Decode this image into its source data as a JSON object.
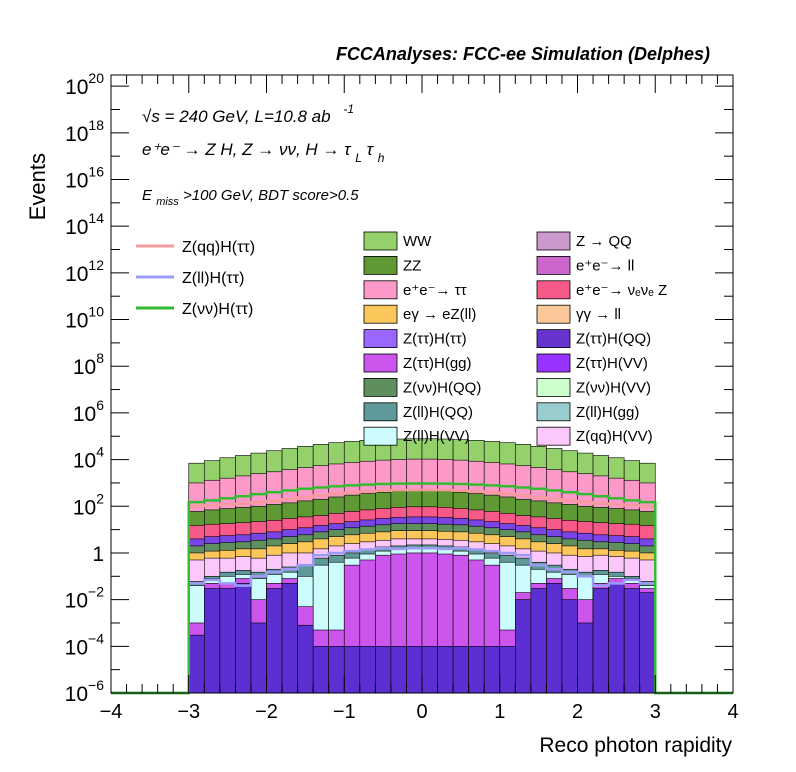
{
  "header": {
    "title": "FCCAnalyses: FCC-ee Simulation (Delphes)"
  },
  "annotations": {
    "line1": "√s = 240 GeV, L=10.8 ab",
    "line1_sup": "-1",
    "line2": "e⁺e⁻ → Z H, Z → νν, H → τ",
    "line2_sub1": "L",
    "line2_tau": "τ",
    "line2_sub2": "h",
    "line3_prefix": "E",
    "line3_sub": "miss",
    "line3_rest": ">100 GeV, BDT score>0.5"
  },
  "chart_data": {
    "type": "area",
    "title": "FCCAnalyses: FCC-ee Simulation (Delphes)",
    "xlabel": "Reco photon rapidity",
    "ylabel": "Events",
    "xlim": [
      -4,
      4
    ],
    "ylim": [
      1e-06,
      3e+20
    ],
    "yscale": "log",
    "grid": false,
    "legend_position": "top",
    "x_ticks": [
      "−4",
      "−3",
      "−2",
      "−1",
      "0",
      "1",
      "2",
      "3",
      "4"
    ],
    "y_ticks": [
      {
        "base": "10",
        "exp": "−6",
        "value": 1e-06
      },
      {
        "base": "10",
        "exp": "−4",
        "value": 0.0001
      },
      {
        "base": "10",
        "exp": "−2",
        "value": 0.01
      },
      {
        "base": "1",
        "exp": "",
        "value": 1
      },
      {
        "base": "10",
        "exp": "2",
        "value": 100.0
      },
      {
        "base": "10",
        "exp": "4",
        "value": 10000.0
      },
      {
        "base": "10",
        "exp": "6",
        "value": 1000000.0
      },
      {
        "base": "10",
        "exp": "8",
        "value": 100000000.0
      },
      {
        "base": "10",
        "exp": "10",
        "value": 10000000000.0
      },
      {
        "base": "10",
        "exp": "12",
        "value": 1000000000000.0
      },
      {
        "base": "10",
        "exp": "14",
        "value": 100000000000000.0
      },
      {
        "base": "10",
        "exp": "16",
        "value": 1e+16
      },
      {
        "base": "10",
        "exp": "18",
        "value": 1e+18
      },
      {
        "base": "10",
        "exp": "20",
        "value": 1e+20
      }
    ],
    "bin_range": [
      -3,
      3
    ],
    "n_bins": 30,
    "stack_top_cumulative": [
      [
        0.0003,
        0.03,
        0.03,
        0.05,
        0.001,
        0.03,
        0.05,
        0.0008,
        0.0001,
        0.0001,
        0.0001,
        0.0001,
        0.0001,
        0.0001,
        0.0001,
        0.0001,
        0.0001,
        0.0001,
        0.0001,
        0.0001,
        0.0001,
        0.01,
        0.03,
        0.05,
        0.01,
        0.001,
        0.03,
        0.05,
        0.03,
        0.02
      ],
      [
        0.001,
        0.05,
        0.05,
        0.08,
        0.01,
        0.05,
        0.08,
        0.005,
        0.0005,
        0.0005,
        0.3,
        0.5,
        0.8,
        0.9,
        1.0,
        1.0,
        0.9,
        0.8,
        0.5,
        0.3,
        0.0005,
        0.02,
        0.05,
        0.08,
        0.03,
        0.01,
        0.05,
        0.08,
        0.05,
        0.03
      ],
      [
        0.04,
        0.08,
        0.1,
        0.12,
        0.08,
        0.12,
        0.15,
        0.1,
        0.3,
        0.4,
        0.6,
        0.9,
        1.2,
        1.4,
        1.5,
        1.5,
        1.4,
        1.2,
        0.9,
        0.6,
        0.4,
        0.3,
        0.2,
        0.15,
        0.12,
        0.1,
        0.12,
        0.1,
        0.08,
        0.04
      ],
      [
        0.06,
        0.1,
        0.15,
        0.18,
        0.15,
        0.2,
        0.25,
        0.3,
        0.6,
        0.8,
        1.0,
        1.5,
        1.8,
        2.0,
        2.2,
        2.2,
        2.0,
        1.8,
        1.5,
        1.0,
        0.8,
        0.6,
        0.4,
        0.3,
        0.2,
        0.15,
        0.18,
        0.15,
        0.1,
        0.06
      ],
      [
        0.5,
        0.6,
        0.6,
        0.7,
        0.6,
        0.8,
        1.0,
        1.0,
        1.5,
        2.0,
        2.5,
        3.0,
        3.5,
        4.0,
        4.0,
        4.0,
        3.8,
        3.5,
        3.0,
        2.5,
        2.0,
        1.5,
        1.2,
        1.0,
        0.8,
        0.7,
        0.8,
        0.7,
        0.6,
        0.5
      ],
      [
        1.0,
        1.2,
        1.3,
        1.5,
        1.5,
        2.0,
        2.5,
        3.0,
        4.0,
        5.0,
        6.0,
        7.0,
        8.0,
        9.0,
        9.0,
        9.0,
        8.5,
        8.0,
        7.0,
        6.0,
        5.0,
        4.0,
        3.0,
        2.5,
        2.0,
        1.5,
        1.5,
        1.3,
        1.2,
        1.0
      ],
      [
        2.0,
        2.5,
        2.8,
        3.0,
        3.5,
        4.0,
        5.0,
        6.0,
        8.0,
        10.0,
        12.0,
        14.0,
        16.0,
        18.0,
        18.0,
        18.0,
        17.0,
        16.0,
        14.0,
        12.0,
        10.0,
        8.0,
        6.0,
        5.0,
        4.0,
        3.5,
        3.0,
        2.8,
        2.5,
        2.0
      ],
      [
        4.0,
        5.0,
        5.5,
        6.0,
        7.0,
        8.0,
        10.0,
        12.0,
        15.0,
        18.0,
        22.0,
        26.0,
        30.0,
        33.0,
        35.0,
        35.0,
        33.0,
        30.0,
        26.0,
        22.0,
        18.0,
        15.0,
        12.0,
        10.0,
        8.0,
        7.0,
        6.0,
        5.5,
        5.0,
        4.0
      ],
      [
        15.0,
        17.0,
        18.0,
        20.0,
        22.0,
        25.0,
        30.0,
        35.0,
        40.0,
        50.0,
        60.0,
        70.0,
        80.0,
        90.0,
        95.0,
        95.0,
        90.0,
        80.0,
        70.0,
        60.0,
        50.0,
        40.0,
        35.0,
        30.0,
        25.0,
        22.0,
        20.0,
        18.0,
        17.0,
        15.0
      ],
      [
        60.0,
        70.0,
        80.0,
        90.0,
        100.0,
        120.0,
        140.0,
        170.0,
        200.0,
        250.0,
        300.0,
        350.0,
        400.0,
        450.0,
        480.0,
        480.0,
        450.0,
        400.0,
        350.0,
        300.0,
        250.0,
        200.0,
        170.0,
        140.0,
        120.0,
        100.0,
        90.0,
        80.0,
        70.0,
        60.0
      ],
      [
        1000.0,
        1300.0,
        1600.0,
        2000.0,
        2500.0,
        3000.0,
        3700.0,
        4500.0,
        5500.0,
        6500.0,
        7500.0,
        8500.0,
        9500.0,
        10000.0,
        10500.0,
        10500.0,
        10000.0,
        9500.0,
        8500.0,
        7500.0,
        6500.0,
        5500.0,
        4500.0,
        3700.0,
        3000.0,
        2500.0,
        2000.0,
        1600.0,
        1300.0,
        1000.0
      ],
      [
        7000.0,
        9000.0,
        12000.0,
        15000.0,
        19000.0,
        24000.0,
        30000.0,
        37000.0,
        45000.0,
        53000.0,
        60000.0,
        67000.0,
        72000.0,
        76000.0,
        78000.0,
        78000.0,
        76000.0,
        72000.0,
        67000.0,
        60000.0,
        53000.0,
        45000.0,
        37000.0,
        30000.0,
        24000.0,
        19000.0,
        15000.0,
        12000.0,
        9000.0,
        7000.0
      ]
    ],
    "stack_layers": [
      {
        "name": "Z(ττ)H(VV)",
        "color": "#5b2fd1"
      },
      {
        "name": "Z(ττ)H(gg)",
        "color": "#cc55ee"
      },
      {
        "name": "Z(ll)H(VV)",
        "color": "#ccfcfc"
      },
      {
        "name": "Z(ll)H(QQ)",
        "color": "#5f9999"
      },
      {
        "name": "Z(qq)H(VV)",
        "color": "#fcc8fc"
      },
      {
        "name": "eγ → eZ(ll)",
        "color": "#fcc75a"
      },
      {
        "name": "Z(νν)H(QQ)",
        "color": "#5f8f5f"
      },
      {
        "name": "Z(ττ)H(QQ)",
        "color": "#7a45e6"
      },
      {
        "name": "e⁺e⁻→ νₑνₑ Z",
        "color": "#f75a88"
      },
      {
        "name": "ZZ",
        "color": "#5f9933"
      },
      {
        "name": "e⁺e⁻→ ττ",
        "color": "#fc99c8"
      },
      {
        "name": "WW",
        "color": "#94d16b"
      }
    ],
    "signal_lines": [
      {
        "name": "Z(qq)H(ττ)",
        "color": "#f59b9b",
        "values": [
          100.0,
          110.0,
          120.0,
          130.0,
          150.0,
          170.0,
          200.0,
          240.0,
          290.0,
          340.0,
          390.0,
          430.0,
          460.0,
          490.0,
          500.0,
          500.0,
          490.0,
          460.0,
          430.0,
          390.0,
          340.0,
          290.0,
          240.0,
          200.0,
          170.0,
          150.0,
          130.0,
          120.0,
          110.0,
          100.0
        ]
      },
      {
        "name": "Z(ll)H(ττ)",
        "color": "#9b9bf5",
        "values": [
          0.05,
          0.07,
          0.05,
          0.04,
          0.1,
          0.15,
          0.2,
          0.3,
          0.8,
          1.0,
          1.2,
          1.4,
          1.6,
          1.5,
          1.6,
          1.6,
          1.5,
          1.6,
          1.4,
          1.2,
          1.0,
          0.8,
          0.3,
          0.2,
          0.15,
          0.1,
          0.04,
          0.05,
          0.07,
          0.05
        ]
      },
      {
        "name": "Z(νν)H(ττ)",
        "color": "#33bb33",
        "values": [
          150.0,
          180.0,
          220.0,
          270.0,
          330.0,
          400.0,
          480.0,
          560.0,
          640.0,
          720.0,
          790.0,
          850.0,
          900.0,
          930.0,
          950.0,
          950.0,
          930.0,
          900.0,
          850.0,
          790.0,
          720.0,
          640.0,
          560.0,
          480.0,
          400.0,
          330.0,
          270.0,
          220.0,
          180.0,
          150.0
        ]
      }
    ],
    "legend": {
      "signals": [
        {
          "name": "Z(qq)H(ττ)",
          "color": "#f59b9b"
        },
        {
          "name": "Z(ll)H(ττ)",
          "color": "#9b9bf5"
        },
        {
          "name": "Z(νν)H(ττ)",
          "color": "#33bb33"
        }
      ],
      "backgrounds": [
        {
          "name": "WW",
          "color": "#94d16b"
        },
        {
          "name": "Z → QQ",
          "color": "#cc99cc"
        },
        {
          "name": "ZZ",
          "color": "#5f9933"
        },
        {
          "name": "e⁺e⁻→ ll",
          "color": "#cc66cc"
        },
        {
          "name": "e⁺e⁻→ ττ",
          "color": "#fc99c8"
        },
        {
          "name": "e⁺e⁻→ νₑνₑ Z",
          "color": "#f75a88"
        },
        {
          "name": "eγ → eZ(ll)",
          "color": "#fcc75a"
        },
        {
          "name": "γγ → ll",
          "color": "#fcc89a"
        },
        {
          "name": "Z(ττ)H(ττ)",
          "color": "#9966ff"
        },
        {
          "name": "Z(ττ)H(QQ)",
          "color": "#6633cc"
        },
        {
          "name": "Z(ττ)H(gg)",
          "color": "#cc55ee"
        },
        {
          "name": "Z(ττ)H(VV)",
          "color": "#9933ff"
        },
        {
          "name": "Z(νν)H(QQ)",
          "color": "#5f8f5f"
        },
        {
          "name": "Z(νν)H(VV)",
          "color": "#ccffcc"
        },
        {
          "name": "Z(ll)H(QQ)",
          "color": "#5f9999"
        },
        {
          "name": "Z(ll)H(gg)",
          "color": "#99cccc"
        },
        {
          "name": "Z(ll)H(VV)",
          "color": "#ccfcfc"
        },
        {
          "name": "Z(qq)H(VV)",
          "color": "#fcc8fc"
        }
      ]
    }
  }
}
